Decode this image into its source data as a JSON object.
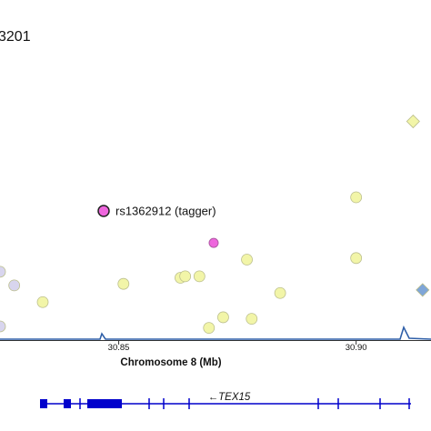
{
  "chart_data": {
    "type": "scatter",
    "title": "3201",
    "xlabel": "Chromosome 8 (Mb)",
    "ylabel": "",
    "xlim": [
      30.825,
      30.915
    ],
    "ylim": [
      0,
      1
    ],
    "grid": false,
    "x_ticks": [
      {
        "value": 30.85,
        "label": "30.85"
      },
      {
        "value": 30.9,
        "label": "30.90"
      }
    ],
    "tagger": {
      "x": 30.87,
      "y": 0.32,
      "label": "rs1362912 (tagger)",
      "color": "#ee66dd"
    },
    "series": [
      {
        "color": "#f2f5a8",
        "marker": "circle",
        "points": [
          {
            "x": 30.834,
            "y": 0.125
          },
          {
            "x": 30.851,
            "y": 0.185
          },
          {
            "x": 30.863,
            "y": 0.205
          },
          {
            "x": 30.864,
            "y": 0.21
          },
          {
            "x": 30.867,
            "y": 0.21
          },
          {
            "x": 30.869,
            "y": 0.04
          },
          {
            "x": 30.872,
            "y": 0.075
          },
          {
            "x": 30.877,
            "y": 0.265
          },
          {
            "x": 30.878,
            "y": 0.07
          },
          {
            "x": 30.884,
            "y": 0.155
          },
          {
            "x": 30.9,
            "y": 0.47
          },
          {
            "x": 30.9,
            "y": 0.27
          }
        ]
      },
      {
        "color": "#d8d5ee",
        "marker": "circle",
        "points": [
          {
            "x": 30.825,
            "y": 0.225
          },
          {
            "x": 30.828,
            "y": 0.18
          },
          {
            "x": 30.825,
            "y": 0.045
          }
        ]
      },
      {
        "color": "#f2f5a8",
        "marker": "diamond",
        "points": [
          {
            "x": 30.912,
            "y": 0.72
          }
        ]
      },
      {
        "color": "#7fa6d8",
        "marker": "diamond",
        "points": [
          {
            "x": 30.914,
            "y": 0.165
          }
        ]
      }
    ],
    "gene": {
      "name": "←TEX15",
      "color": "#0000cc"
    }
  }
}
